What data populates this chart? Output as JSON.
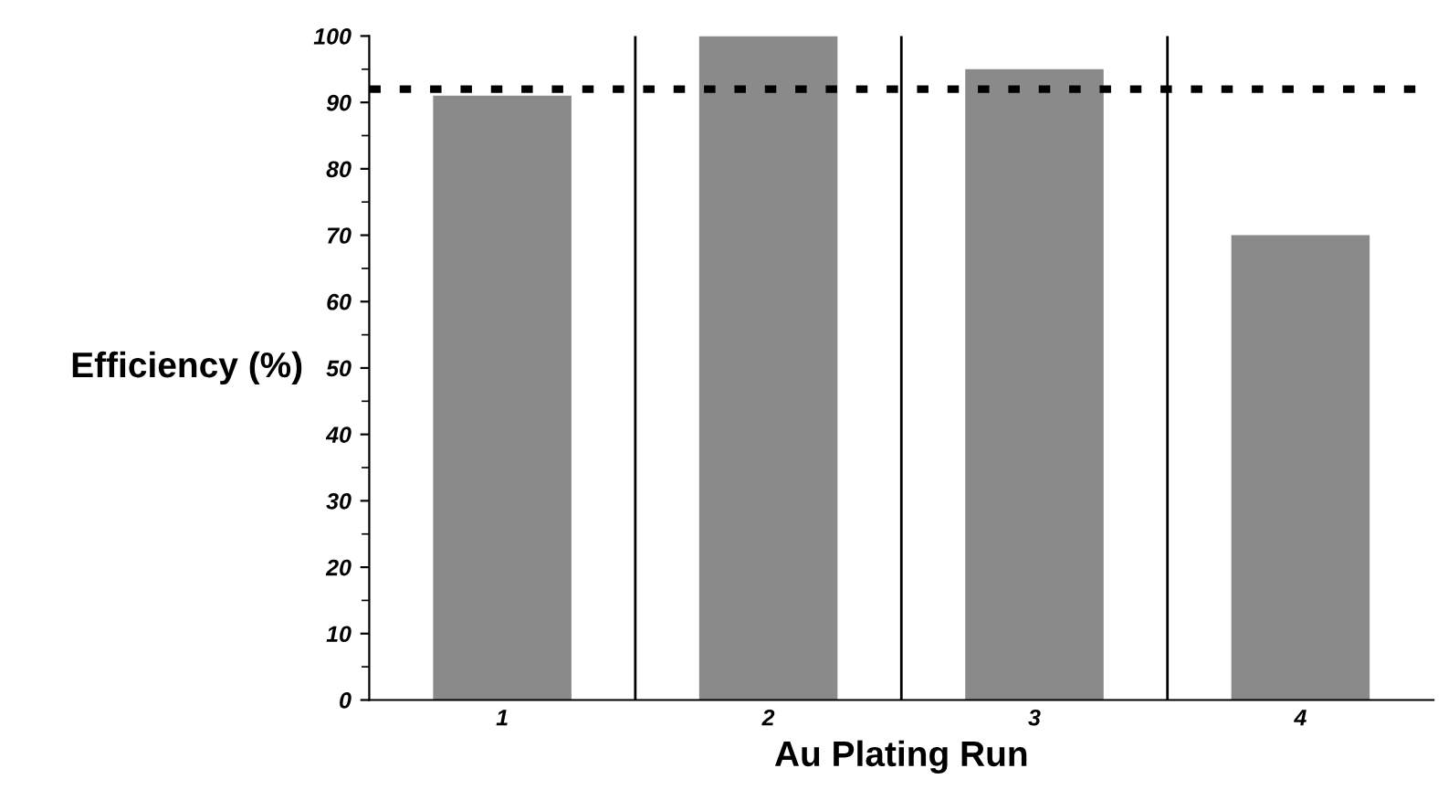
{
  "chart_data": {
    "type": "bar",
    "xlabel": "Au Plating Run",
    "ylabel": "Efficiency (%)",
    "categories": [
      "1",
      "2",
      "3",
      "4"
    ],
    "values": [
      91,
      100,
      95,
      70
    ],
    "color": "#8a8a8a",
    "ylim": [
      0,
      100
    ],
    "yticks": [
      0,
      10,
      20,
      30,
      40,
      50,
      60,
      70,
      80,
      90,
      100
    ],
    "grid": "x",
    "ref_lines": [
      {
        "axis": "y",
        "value": 92,
        "line_style": "dotted",
        "color": "#000000"
      }
    ]
  }
}
